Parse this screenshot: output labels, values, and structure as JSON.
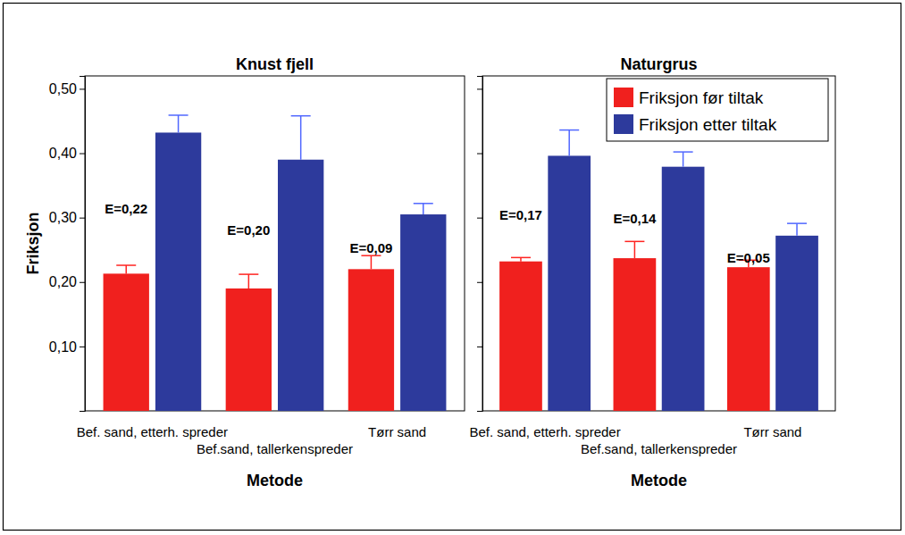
{
  "chart_data": [
    {
      "type": "bar",
      "title": "Knust fjell",
      "y_label": "Friksjon",
      "x_label": "Metode",
      "categories": [
        "Bef. sand, etterh. spreder",
        "Bef.sand, tallerkenspreder",
        "Tørr sand"
      ],
      "series": [
        {
          "color": "#f0201e",
          "values": [
            0.213,
            0.19,
            0.22
          ],
          "errors": [
            0.013,
            0.022,
            0.021
          ]
        },
        {
          "color": "#2d3a9c",
          "values": [
            0.432,
            0.39,
            0.305
          ],
          "errors": [
            0.027,
            0.068,
            0.017
          ]
        }
      ],
      "annotations": [
        "E=0,22",
        "E=0,20",
        "E=0,09"
      ],
      "ylim": [
        0,
        0.52
      ],
      "yticks": [
        {
          "value": 0.1,
          "label": "0,10"
        },
        {
          "value": 0.2,
          "label": "0,20"
        },
        {
          "value": 0.3,
          "label": "0,30"
        },
        {
          "value": 0.4,
          "label": "0,40"
        },
        {
          "value": 0.5,
          "label": "0,50"
        }
      ]
    },
    {
      "type": "bar",
      "title": "Naturgrus",
      "x_label": "Metode",
      "categories": [
        "Bef. sand, etterh. spreder",
        "Bef.sand, tallerkenspreder",
        "Tørr sand"
      ],
      "series": [
        {
          "name": "Friksjon før tiltak",
          "color": "#f0201e",
          "values": [
            0.232,
            0.237,
            0.223
          ],
          "errors": [
            0.006,
            0.026,
            0.011
          ]
        },
        {
          "name": "Friksjon etter tiltak",
          "color": "#2d3a9c",
          "values": [
            0.396,
            0.379,
            0.272
          ],
          "errors": [
            0.04,
            0.023,
            0.019
          ]
        }
      ],
      "annotations": [
        "E=0,17",
        "E=0,14",
        "E=0,05"
      ],
      "ylim": [
        0,
        0.52
      ],
      "yticks": [
        0.1,
        0.2,
        0.3,
        0.4,
        0.5
      ],
      "tick_labels": "x",
      "legend": "top-right"
    }
  ]
}
